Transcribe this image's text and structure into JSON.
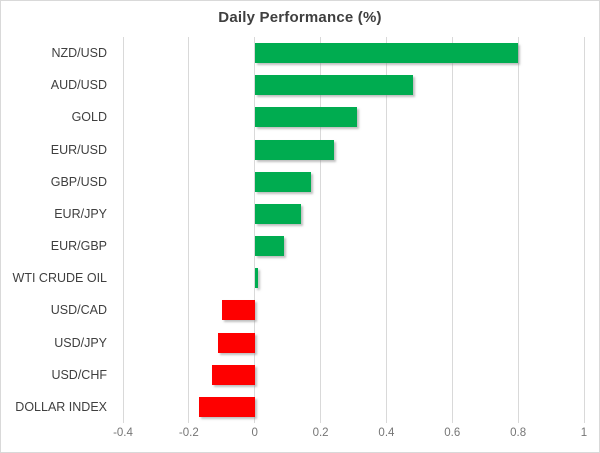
{
  "chart_data": {
    "type": "bar",
    "orientation": "horizontal",
    "title": "Daily Performance (%)",
    "categories": [
      "NZD/USD",
      "AUD/USD",
      "GOLD",
      "EUR/USD",
      "GBP/USD",
      "EUR/JPY",
      "EUR/GBP",
      "WTI CRUDE OIL",
      "USD/CAD",
      "USD/JPY",
      "USD/CHF",
      "DOLLAR INDEX"
    ],
    "values": [
      0.8,
      0.48,
      0.31,
      0.24,
      0.17,
      0.14,
      0.09,
      0.01,
      -0.1,
      -0.11,
      -0.13,
      -0.17
    ],
    "xlim": [
      -0.4,
      1.0
    ],
    "x_tick_values": [
      -0.4,
      -0.2,
      0,
      0.2,
      0.4,
      0.6,
      0.8,
      1
    ],
    "x_tick_labels": [
      "-0.4",
      "-0.2",
      "0",
      "0.2",
      "0.4",
      "0.6",
      "0.8",
      "1"
    ],
    "grid": "vertical",
    "legend": "none"
  },
  "colors": {
    "positive_bar": "#00ac50",
    "negative_bar": "#fe0000",
    "gridline": "#d9d9d9",
    "title_text": "#3f3f3f",
    "category_text": "#3f3f3f",
    "tick_text": "#767676",
    "frame_border": "#d9d9d9",
    "background": "#ffffff"
  }
}
